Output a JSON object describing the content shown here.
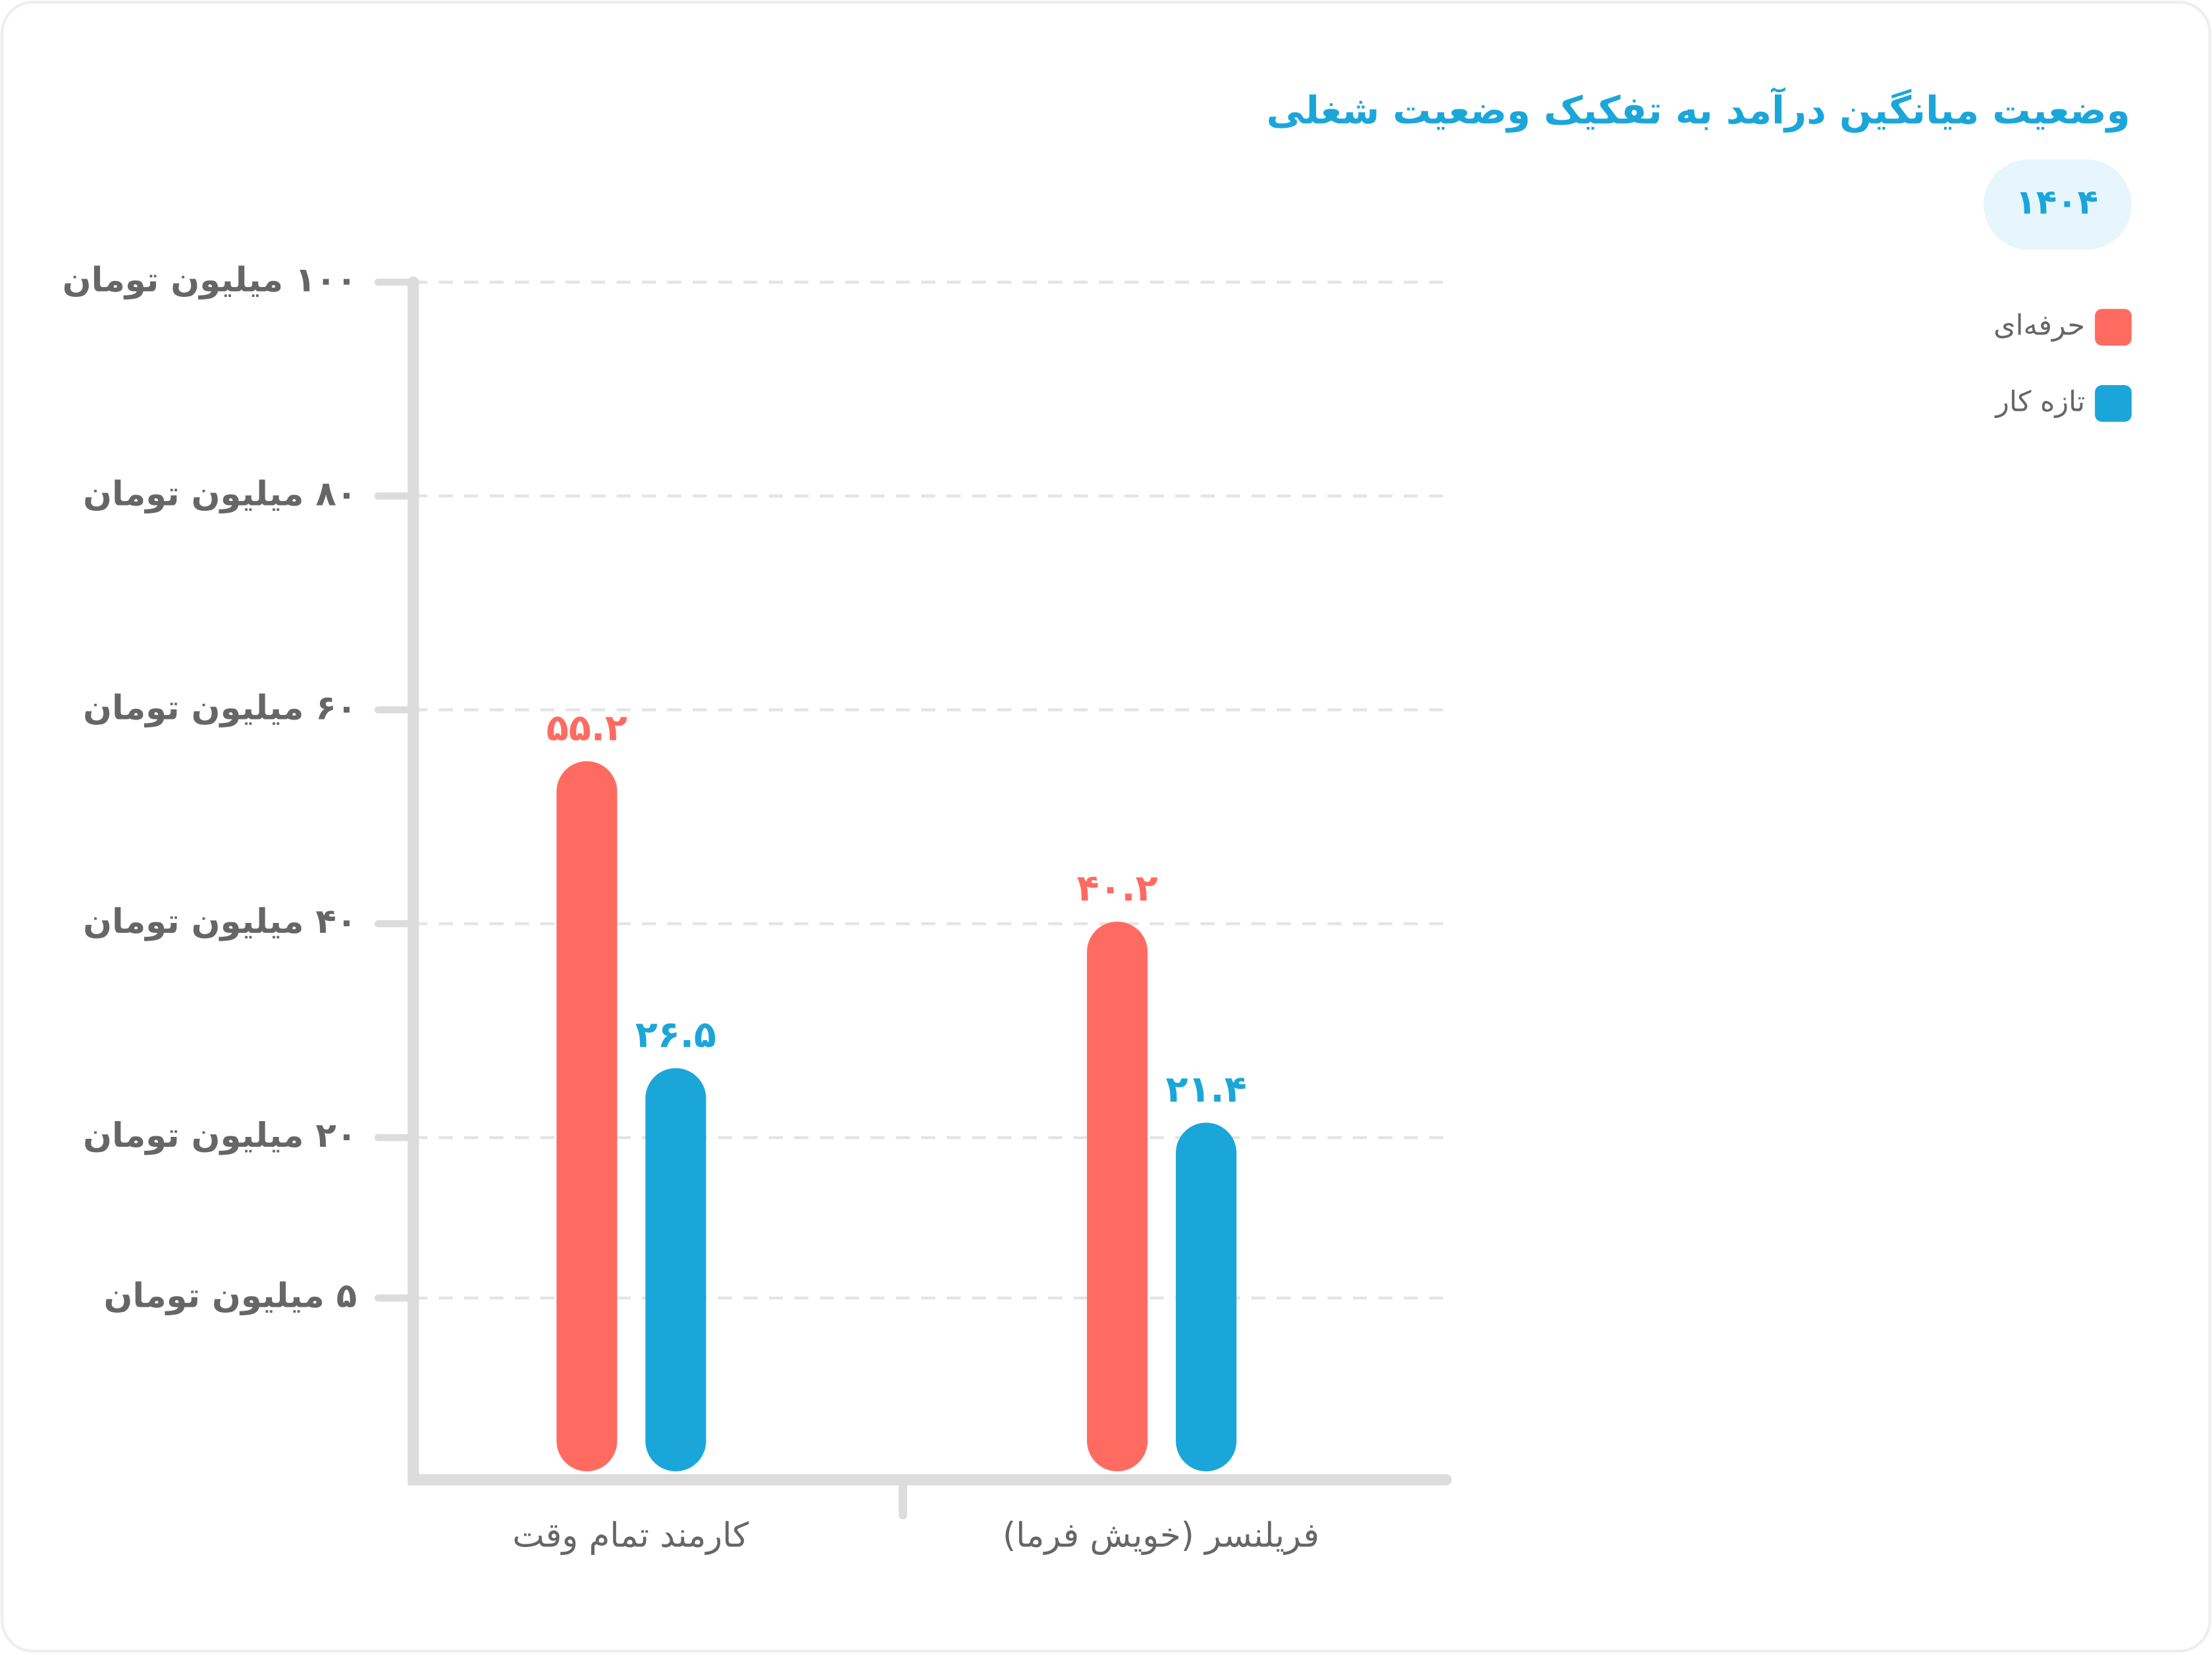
{
  "chart_data": {
    "type": "bar",
    "title": "وضعیت میانگین درآمد به تفکیک وضعیت شغلی",
    "subtitle": "۱۴۰۴",
    "categories": [
      "کارمند تمام وقت",
      "فریلنسر (خویش فرما)"
    ],
    "series": [
      {
        "name": "حرفه‌ای",
        "color": "#ff6b61",
        "values": [
          55.2,
          40.2
        ],
        "value_labels": [
          "۵۵.۲",
          "۴۰.۲"
        ]
      },
      {
        "name": "تازه کار",
        "color": "#1ba6d9",
        "values": [
          26.5,
          21.4
        ],
        "value_labels": [
          "۲۶.۵",
          "۲۱.۴"
        ]
      }
    ],
    "ylim": [
      -12,
      100
    ],
    "yticks": [
      {
        "value": 5,
        "label": "۵ میلیون تومان"
      },
      {
        "value": 20,
        "label": "۲۰ میلیون تومان"
      },
      {
        "value": 40,
        "label": "۴۰ میلیون تومان"
      },
      {
        "value": 60,
        "label": "۶۰ میلیون تومان"
      },
      {
        "value": 80,
        "label": "۸۰ میلیون تومان"
      },
      {
        "value": 100,
        "label": "۱۰۰ میلیون تومان"
      }
    ],
    "grid": true,
    "legend": "top-right"
  }
}
